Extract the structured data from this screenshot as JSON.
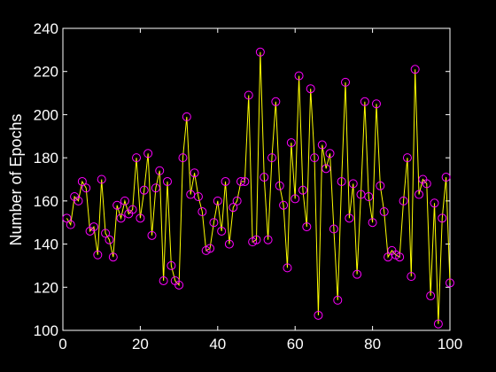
{
  "chart_data": {
    "type": "line",
    "title": "",
    "xlabel": "",
    "ylabel": "Number of Epochs",
    "xlim": [
      0,
      100
    ],
    "ylim": [
      100,
      240
    ],
    "xticks": [
      0,
      20,
      40,
      60,
      80,
      100
    ],
    "yticks": [
      100,
      120,
      140,
      160,
      180,
      200,
      220,
      240
    ],
    "grid": false,
    "background": "#000000",
    "axes_color": "#ffffff",
    "series": [
      {
        "line_color": "#ffff00",
        "marker": "circle",
        "marker_color": "#ff00ff",
        "x": [
          1,
          2,
          3,
          4,
          5,
          6,
          7,
          8,
          9,
          10,
          11,
          12,
          13,
          14,
          15,
          16,
          17,
          18,
          19,
          20,
          21,
          22,
          23,
          24,
          25,
          26,
          27,
          28,
          29,
          30,
          31,
          32,
          33,
          34,
          35,
          36,
          37,
          38,
          39,
          40,
          41,
          42,
          43,
          44,
          45,
          46,
          47,
          48,
          49,
          50,
          51,
          52,
          53,
          54,
          55,
          56,
          57,
          58,
          59,
          60,
          61,
          62,
          63,
          64,
          65,
          66,
          67,
          68,
          69,
          70,
          71,
          72,
          73,
          74,
          75,
          76,
          77,
          78,
          79,
          80,
          81,
          82,
          83,
          84,
          85,
          86,
          87,
          88,
          89,
          90,
          91,
          92,
          93,
          94,
          95,
          96,
          97,
          98,
          99,
          100
        ],
        "y": [
          152,
          149,
          162,
          160,
          169,
          166,
          146,
          148,
          135,
          170,
          145,
          142,
          134,
          158,
          152,
          160,
          154,
          156,
          180,
          152,
          165,
          182,
          144,
          166,
          174,
          123,
          169,
          130,
          123,
          121,
          180,
          199,
          163,
          173,
          162,
          155,
          137,
          138,
          150,
          160,
          146,
          169,
          140,
          157,
          160,
          169,
          169,
          209,
          141,
          142,
          229,
          171,
          142,
          180,
          206,
          167,
          158,
          129,
          187,
          161,
          218,
          165,
          148,
          212,
          180,
          107,
          186,
          175,
          182,
          147,
          114,
          169,
          215,
          152,
          168,
          126,
          163,
          206,
          162,
          150,
          205,
          167,
          155,
          134,
          137,
          135,
          134,
          160,
          180,
          125,
          221,
          163,
          170,
          168,
          116,
          159,
          103,
          152,
          171,
          122
        ]
      }
    ]
  }
}
